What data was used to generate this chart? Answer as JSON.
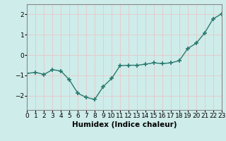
{
  "x": [
    0,
    1,
    2,
    3,
    4,
    5,
    6,
    7,
    8,
    9,
    10,
    11,
    12,
    13,
    14,
    15,
    16,
    17,
    18,
    19,
    20,
    21,
    22,
    23
  ],
  "y": [
    -0.9,
    -0.85,
    -0.95,
    -0.72,
    -0.78,
    -1.22,
    -1.88,
    -2.08,
    -2.18,
    -1.55,
    -1.15,
    -0.52,
    -0.5,
    -0.5,
    -0.45,
    -0.38,
    -0.42,
    -0.38,
    -0.28,
    0.32,
    0.58,
    1.08,
    1.78,
    2.02
  ],
  "line_color": "#2a7a6e",
  "marker": "+",
  "marker_size": 4,
  "marker_lw": 1.2,
  "bg_color": "#ceecea",
  "grid_color": "#f0f0f0",
  "spine_color": "#888888",
  "xlabel": "Humidex (Indice chaleur)",
  "xlim": [
    0,
    23
  ],
  "ylim": [
    -2.7,
    2.5
  ],
  "yticks": [
    -2,
    -1,
    0,
    1,
    2
  ],
  "xlabel_fontsize": 7.5,
  "tick_fontsize": 6.5
}
